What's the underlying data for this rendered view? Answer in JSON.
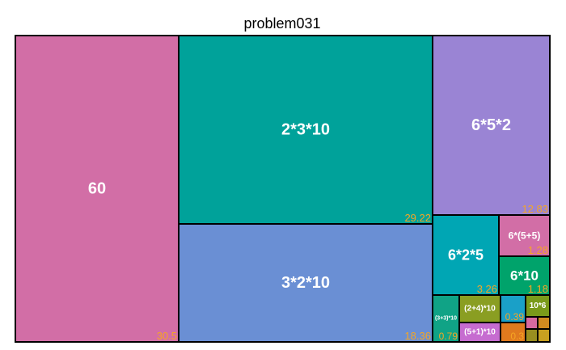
{
  "chart_data": {
    "type": "treemap",
    "title": "problem031",
    "value_color": "#f5a623",
    "items": [
      {
        "label": "60",
        "value": 30.5,
        "color": "#d26ea6"
      },
      {
        "label": "2*3*10",
        "value": 29.22,
        "color": "#00a29a"
      },
      {
        "label": "3*2*10",
        "value": 18.36,
        "color": "#6a8fd4"
      },
      {
        "label": "6*5*2",
        "value": 12.83,
        "color": "#9a84d4"
      },
      {
        "label": "6*2*5",
        "value": 3.26,
        "color": "#00a6b4"
      },
      {
        "label": "6*(5+5)",
        "value": 1.28,
        "color": "#d26ea6"
      },
      {
        "label": "6*10",
        "value": 1.18,
        "color": "#00a36b"
      },
      {
        "label": "(3+3)*10",
        "value": 0.79,
        "color": "#10a386"
      },
      {
        "label": "(2+4)*10",
        "value": "",
        "color": "#8a9e22"
      },
      {
        "label": "(5+1)*10",
        "value": "",
        "color": "#c66cd0"
      },
      {
        "label": "",
        "value": 0.39,
        "color": "#1aa0c8"
      },
      {
        "label": "",
        "value": 0.3,
        "color": "#e07a1e"
      },
      {
        "label": "10*6",
        "value": "",
        "color": "#7a9a1a"
      },
      {
        "label": "",
        "value": "",
        "color": "#d86aa0"
      },
      {
        "label": "",
        "value": "",
        "color": "#d08a20"
      },
      {
        "label": "",
        "value": "",
        "color": "#9a8e20"
      },
      {
        "label": "",
        "value": "",
        "color": "#c8a020"
      }
    ]
  }
}
